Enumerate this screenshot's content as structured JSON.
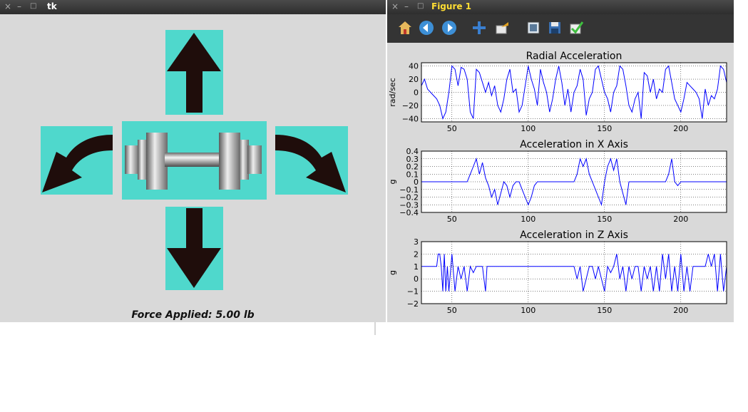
{
  "tk_window": {
    "title": "tk",
    "close": "×",
    "minimize": "–",
    "maximize": "□",
    "force_label": "Force Applied: 5.00 lb"
  },
  "figure_window": {
    "title": "Figure 1",
    "close": "×",
    "minimize": "–",
    "maximize": "□",
    "toolbar": [
      "home-icon",
      "back-icon",
      "forward-icon",
      "pan-icon",
      "zoom-icon",
      "subplots-icon",
      "save-icon",
      "check-icon"
    ]
  },
  "colors": {
    "accent": "#4fd8cc",
    "arrow": "#1f0d0b",
    "line": "#0000ff"
  },
  "chart_data": [
    {
      "type": "line",
      "title": "Radial Acceleration",
      "xlabel": "",
      "ylabel": "rad/sec",
      "xlim": [
        30,
        230
      ],
      "ylim": [
        -45,
        45
      ],
      "xticks": [
        50,
        100,
        150,
        200
      ],
      "yticks": [
        -40,
        -20,
        0,
        20,
        40
      ],
      "grid": true,
      "x": [
        30,
        32,
        34,
        36,
        38,
        40,
        42,
        44,
        46,
        48,
        50,
        52,
        54,
        56,
        58,
        60,
        62,
        64,
        66,
        68,
        70,
        72,
        74,
        76,
        78,
        80,
        82,
        84,
        86,
        88,
        90,
        92,
        94,
        96,
        98,
        100,
        102,
        104,
        106,
        108,
        110,
        112,
        114,
        116,
        118,
        120,
        122,
        124,
        126,
        128,
        130,
        132,
        134,
        136,
        138,
        140,
        142,
        144,
        146,
        148,
        150,
        152,
        154,
        156,
        158,
        160,
        162,
        164,
        166,
        168,
        170,
        172,
        174,
        176,
        178,
        180,
        182,
        184,
        186,
        188,
        190,
        192,
        194,
        196,
        198,
        200,
        202,
        204,
        206,
        208,
        210,
        212,
        214,
        216,
        218,
        220,
        222,
        224,
        226,
        228,
        230
      ],
      "y": [
        10,
        20,
        5,
        0,
        -5,
        -10,
        -20,
        -40,
        -30,
        0,
        40,
        35,
        10,
        38,
        35,
        20,
        -30,
        -40,
        35,
        30,
        15,
        0,
        15,
        -5,
        10,
        -20,
        -30,
        -10,
        20,
        35,
        0,
        5,
        -30,
        -20,
        10,
        40,
        20,
        5,
        -20,
        35,
        15,
        0,
        -30,
        -10,
        20,
        40,
        15,
        -20,
        5,
        -30,
        0,
        10,
        35,
        20,
        -35,
        -10,
        0,
        35,
        40,
        20,
        0,
        -10,
        -30,
        0,
        10,
        40,
        35,
        10,
        -20,
        -30,
        -10,
        0,
        -40,
        30,
        25,
        0,
        20,
        -10,
        5,
        0,
        35,
        40,
        15,
        -10,
        -20,
        -30,
        -10,
        15,
        10,
        5,
        0,
        -10,
        -40,
        5,
        -20,
        -5,
        -10,
        5,
        40,
        35,
        15
      ]
    },
    {
      "type": "line",
      "title": "Acceleration in X Axis",
      "xlabel": "",
      "ylabel": "g",
      "xlim": [
        30,
        230
      ],
      "ylim": [
        -0.4,
        0.4
      ],
      "xticks": [
        50,
        100,
        150,
        200
      ],
      "yticks": [
        -0.4,
        -0.3,
        -0.2,
        -0.1,
        0.0,
        0.1,
        0.2,
        0.3,
        0.4
      ],
      "grid": true,
      "x": [
        30,
        40,
        50,
        60,
        62,
        64,
        66,
        68,
        70,
        72,
        74,
        76,
        78,
        80,
        82,
        84,
        86,
        88,
        90,
        92,
        94,
        96,
        98,
        100,
        102,
        104,
        106,
        110,
        120,
        130,
        132,
        134,
        136,
        138,
        140,
        142,
        144,
        146,
        148,
        150,
        152,
        154,
        156,
        158,
        160,
        162,
        164,
        166,
        170,
        180,
        190,
        192,
        194,
        196,
        198,
        200,
        210,
        220,
        230
      ],
      "y": [
        0,
        0,
        0,
        0,
        0.1,
        0.2,
        0.3,
        0.1,
        0.25,
        0.05,
        -0.05,
        -0.2,
        -0.1,
        -0.3,
        -0.15,
        0,
        -0.05,
        -0.2,
        -0.05,
        0,
        0,
        -0.1,
        -0.2,
        -0.3,
        -0.2,
        -0.05,
        0,
        0,
        0,
        0,
        0.1,
        0.3,
        0.2,
        0.3,
        0.1,
        0,
        -0.1,
        -0.2,
        -0.3,
        0,
        0.2,
        0.3,
        0.15,
        0.3,
        0,
        -0.15,
        -0.3,
        0,
        0,
        0,
        0,
        0.1,
        0.3,
        0,
        -0.05,
        0,
        0,
        0,
        0
      ]
    },
    {
      "type": "line",
      "title": "Acceleration in Z Axis",
      "xlabel": "",
      "ylabel": "g",
      "xlim": [
        30,
        230
      ],
      "ylim": [
        -2,
        3
      ],
      "xticks": [
        50,
        100,
        150,
        200
      ],
      "yticks": [
        -2,
        -1,
        0,
        1,
        2,
        3
      ],
      "grid": true,
      "x": [
        30,
        35,
        40,
        41,
        42,
        43,
        44,
        45,
        46,
        47,
        48,
        50,
        52,
        54,
        56,
        58,
        60,
        62,
        64,
        66,
        68,
        70,
        71,
        72,
        73,
        74,
        80,
        90,
        100,
        110,
        120,
        130,
        132,
        134,
        136,
        138,
        140,
        142,
        144,
        146,
        148,
        150,
        152,
        154,
        156,
        158,
        160,
        162,
        164,
        166,
        168,
        170,
        172,
        174,
        176,
        178,
        180,
        182,
        184,
        186,
        188,
        190,
        192,
        194,
        196,
        198,
        200,
        202,
        204,
        206,
        208,
        210,
        212,
        214,
        216,
        218,
        220,
        222,
        224,
        226,
        228,
        230
      ],
      "y": [
        1,
        1,
        1,
        2,
        2,
        1,
        -1,
        2,
        -1,
        1,
        -1,
        2,
        -1,
        1,
        0,
        1,
        -1,
        1,
        0.5,
        1,
        1,
        1,
        0,
        -1,
        1,
        1,
        1,
        1,
        1,
        1,
        1,
        1,
        0,
        1,
        -1,
        0,
        1,
        1,
        0,
        1,
        0,
        -1,
        1,
        0.5,
        1,
        2,
        0,
        1,
        -1,
        1,
        0,
        1,
        1,
        -1,
        1,
        0,
        1,
        -1,
        1,
        -1,
        2,
        0,
        2,
        -1,
        1,
        -1,
        2,
        -1,
        1,
        -1,
        1,
        1,
        1,
        1,
        1,
        2,
        1,
        2,
        -1,
        2,
        -1,
        1
      ]
    }
  ]
}
